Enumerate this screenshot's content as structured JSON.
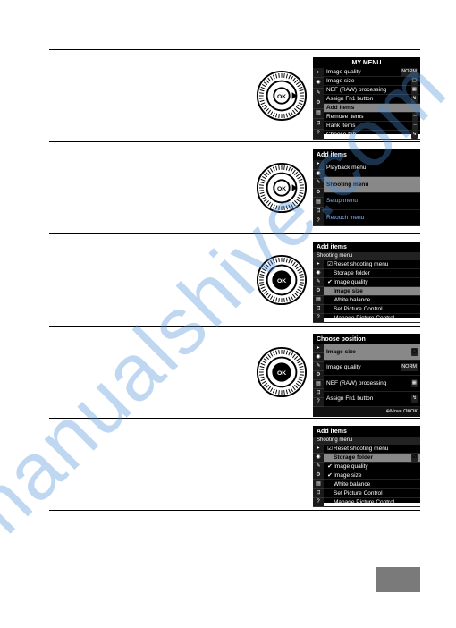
{
  "watermark": "manualshive.com",
  "dial": {
    "ok_label": "OK"
  },
  "colors": {
    "watermark": "#4a90d9",
    "screen_bg": "#000000",
    "screen_fg": "#ffffff",
    "highlight_bg": "#888888",
    "highlight_fg": "#000000",
    "blue_text": "#7ab8ff",
    "page_tab": "#7a7a7a"
  },
  "screens": {
    "s1": {
      "title": "MY MENU",
      "rows": [
        {
          "label": "Image quality",
          "val": "NORM"
        },
        {
          "label": "Image size",
          "val": "▢"
        },
        {
          "label": "NEF (RAW) processing",
          "val": "▦"
        },
        {
          "label": "Assign Fn1 button",
          "val": "↯"
        },
        {
          "label": "Add items",
          "hl": true
        },
        {
          "label": "Remove items",
          "val": "--"
        },
        {
          "label": "Rank items",
          "val": "--"
        },
        {
          "label": "Choose tab",
          "val": "↳"
        }
      ]
    },
    "s2": {
      "title": "Add items",
      "rows": [
        {
          "label": "Playback menu"
        },
        {
          "label": "Shooting menu",
          "hl": true
        },
        {
          "label": "Setup menu",
          "blue": true
        },
        {
          "label": "Retouch menu",
          "blue": true
        }
      ]
    },
    "s3": {
      "title": "Add items",
      "subtitle": "Shooting menu",
      "rows": [
        {
          "check": "☑",
          "label": "Reset shooting menu"
        },
        {
          "check": "",
          "label": "Storage folder"
        },
        {
          "check": "✔",
          "label": "Image quality"
        },
        {
          "check": "",
          "label": "Image size",
          "hl": true
        },
        {
          "check": "",
          "label": "White balance"
        },
        {
          "check": "",
          "label": "Set Picture Control"
        },
        {
          "check": "",
          "label": "Manage Picture Control"
        }
      ]
    },
    "s4": {
      "title": "Choose position",
      "rows": [
        {
          "label": "Image size",
          "hl": true,
          "val": "▢"
        },
        {
          "label": "Image quality",
          "val": "NORM"
        },
        {
          "label": "NEF (RAW) processing",
          "val": "▦"
        },
        {
          "label": "Assign Fn1 button",
          "val": "↯"
        }
      ],
      "footer": "⊕Move   OKOK"
    },
    "s5": {
      "title": "Add items",
      "subtitle": "Shooting menu",
      "rows": [
        {
          "check": "☑",
          "label": "Reset shooting menu"
        },
        {
          "check": "",
          "label": "Storage folder",
          "hl": true,
          "val": "☑"
        },
        {
          "check": "✔",
          "label": "Image quality"
        },
        {
          "check": "✔",
          "label": "Image size"
        },
        {
          "check": "",
          "label": "White balance"
        },
        {
          "check": "",
          "label": "Set Picture Control"
        },
        {
          "check": "",
          "label": "Manage Picture Control"
        }
      ]
    }
  }
}
